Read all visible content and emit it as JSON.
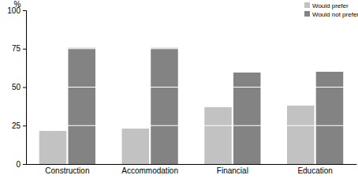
{
  "chart_data": {
    "type": "bar",
    "y_label": "%",
    "categories": [
      "Construction",
      "Accommodation",
      "Financial",
      "Education"
    ],
    "series": [
      {
        "name": "Would prefer",
        "color": "#c2c2c2",
        "values": [
          21.5,
          23,
          37,
          38
        ]
      },
      {
        "name": "Would not prefer",
        "color": "#838383",
        "values": [
          75.5,
          75.5,
          59.5,
          60
        ]
      }
    ],
    "ylim": [
      0,
      100
    ],
    "yticks": [
      0,
      25,
      50,
      75,
      100
    ],
    "grid": true,
    "legend": "top-right"
  }
}
